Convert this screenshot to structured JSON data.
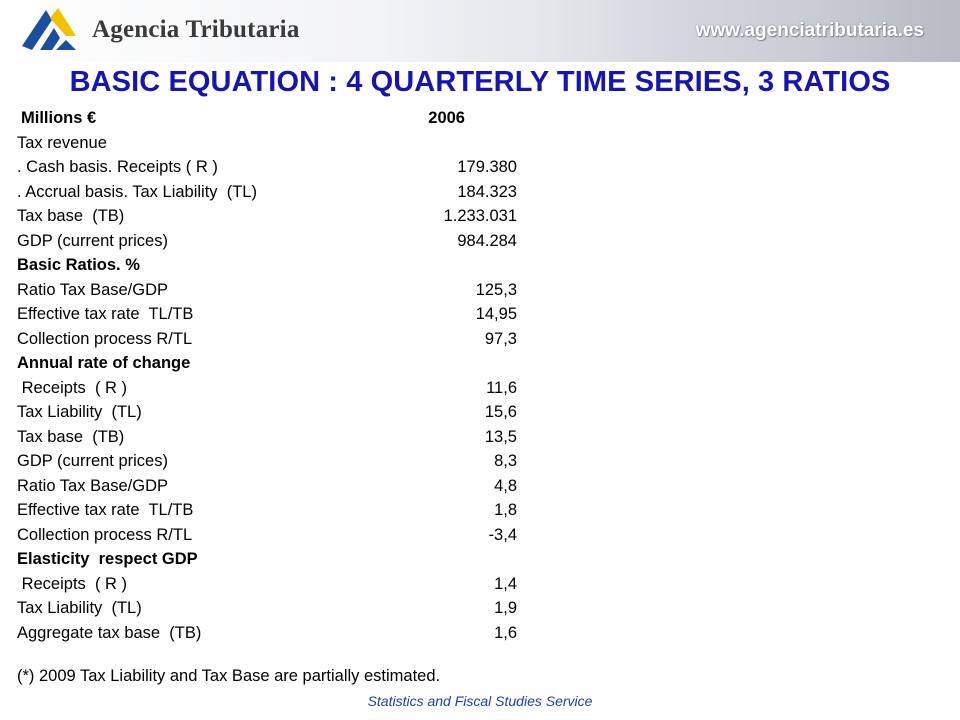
{
  "header": {
    "org_name": "Agencia Tributaria",
    "site_url": "www.agenciatributaria.es",
    "brand_colors": {
      "logo_blue": "#1c4ea0",
      "logo_yellow": "#f2c200"
    }
  },
  "title": "BASIC EQUATION : 4 QUARTERLY TIME SERIES, 3 RATIOS",
  "table": {
    "header": {
      "label": "Millions €",
      "value": "2006"
    },
    "rows": [
      {
        "label": "Tax revenue",
        "value": "",
        "bold": false
      },
      {
        "label": ". Cash basis. Receipts ( R )",
        "value": "179.380",
        "bold": false
      },
      {
        "label": ". Accrual basis. Tax Liability  (TL)",
        "value": "184.323",
        "bold": false
      },
      {
        "label": "Tax base  (TB)",
        "value": "1.233.031",
        "bold": false
      },
      {
        "label": "GDP (current prices)",
        "value": "984.284",
        "bold": false
      },
      {
        "label": "Basic Ratios. %",
        "value": "",
        "bold": true
      },
      {
        "label": "Ratio Tax Base/GDP",
        "value": "125,3",
        "bold": false
      },
      {
        "label": "Effective tax rate  TL/TB",
        "value": "14,95",
        "bold": false
      },
      {
        "label": "Collection process R/TL",
        "value": "97,3",
        "bold": false
      },
      {
        "label": "Annual rate of change",
        "value": "",
        "bold": true
      },
      {
        "label": " Receipts  ( R )",
        "value": "11,6",
        "bold": false
      },
      {
        "label": "Tax Liability  (TL)",
        "value": "15,6",
        "bold": false
      },
      {
        "label": "Tax base  (TB)",
        "value": "13,5",
        "bold": false
      },
      {
        "label": "GDP (current prices)",
        "value": "8,3",
        "bold": false
      },
      {
        "label": "Ratio Tax Base/GDP",
        "value": "4,8",
        "bold": false
      },
      {
        "label": "Effective tax rate  TL/TB",
        "value": "1,8",
        "bold": false
      },
      {
        "label": "Collection process R/TL",
        "value": "-3,4",
        "bold": false
      },
      {
        "label": "Elasticity  respect GDP",
        "value": "",
        "bold": true
      },
      {
        "label": " Receipts  ( R )",
        "value": "1,4",
        "bold": false
      },
      {
        "label": "Tax Liability  (TL)",
        "value": "1,9",
        "bold": false
      },
      {
        "label": "Aggregate tax base  (TB)",
        "value": "1,6",
        "bold": false
      }
    ]
  },
  "footnote": "(*)  2009 Tax Liability and Tax Base are partially estimated.",
  "footer": "Statistics and Fiscal Studies Service"
}
